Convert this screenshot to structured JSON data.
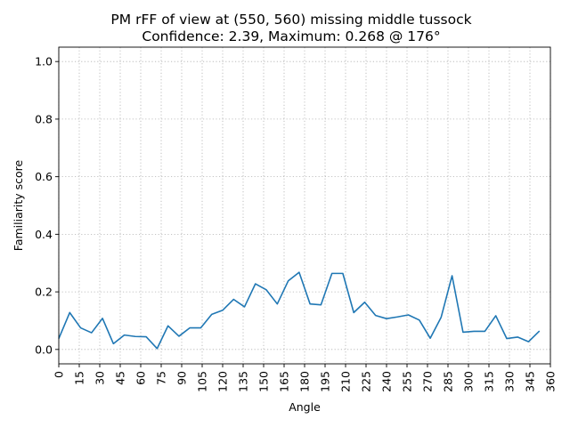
{
  "chart_data": {
    "type": "line",
    "title_line1": "PM rFF of view at (550, 560) missing middle tussock",
    "title_line2": "Confidence: 2.39, Maximum: 0.268 @ 176°",
    "xlabel": "Angle",
    "ylabel": "Familiarity score",
    "xlim": [
      0,
      360
    ],
    "ylim": [
      -0.05,
      1.05
    ],
    "grid": true,
    "x_ticks": [
      0,
      15,
      30,
      45,
      60,
      75,
      90,
      105,
      120,
      135,
      150,
      165,
      180,
      195,
      210,
      225,
      240,
      255,
      270,
      285,
      300,
      315,
      330,
      345,
      360
    ],
    "x_tick_labels": [
      "0",
      "15",
      "30",
      "45",
      "60",
      "75",
      "90",
      "105",
      "120",
      "135",
      "150",
      "165",
      "180",
      "195",
      "210",
      "225",
      "240",
      "255",
      "270",
      "285",
      "300",
      "315",
      "330",
      "345",
      "360"
    ],
    "y_ticks": [
      0.0,
      0.2,
      0.4,
      0.6,
      0.8,
      1.0
    ],
    "y_tick_labels": [
      "0.0",
      "0.2",
      "0.4",
      "0.6",
      "0.8",
      "1.0"
    ],
    "series": [
      {
        "color": "#1f77b4",
        "x": [
          0,
          8,
          16,
          24,
          32,
          40,
          48,
          56,
          64,
          72,
          80,
          88,
          96,
          104,
          112,
          120,
          128,
          136,
          144,
          152,
          160,
          168,
          176,
          184,
          192,
          200,
          208,
          216,
          224,
          232,
          240,
          248,
          256,
          264,
          272,
          280,
          288,
          296,
          304,
          312,
          320,
          328,
          336,
          344,
          352
        ],
        "y": [
          0.038,
          0.128,
          0.075,
          0.058,
          0.108,
          0.02,
          0.05,
          0.045,
          0.044,
          0.003,
          0.082,
          0.046,
          0.075,
          0.075,
          0.122,
          0.136,
          0.174,
          0.148,
          0.228,
          0.207,
          0.158,
          0.238,
          0.268,
          0.158,
          0.155,
          0.264,
          0.264,
          0.128,
          0.164,
          0.118,
          0.107,
          0.113,
          0.12,
          0.102,
          0.039,
          0.112,
          0.256,
          0.06,
          0.063,
          0.063,
          0.117,
          0.038,
          0.043,
          0.027,
          0.064
        ]
      }
    ]
  }
}
